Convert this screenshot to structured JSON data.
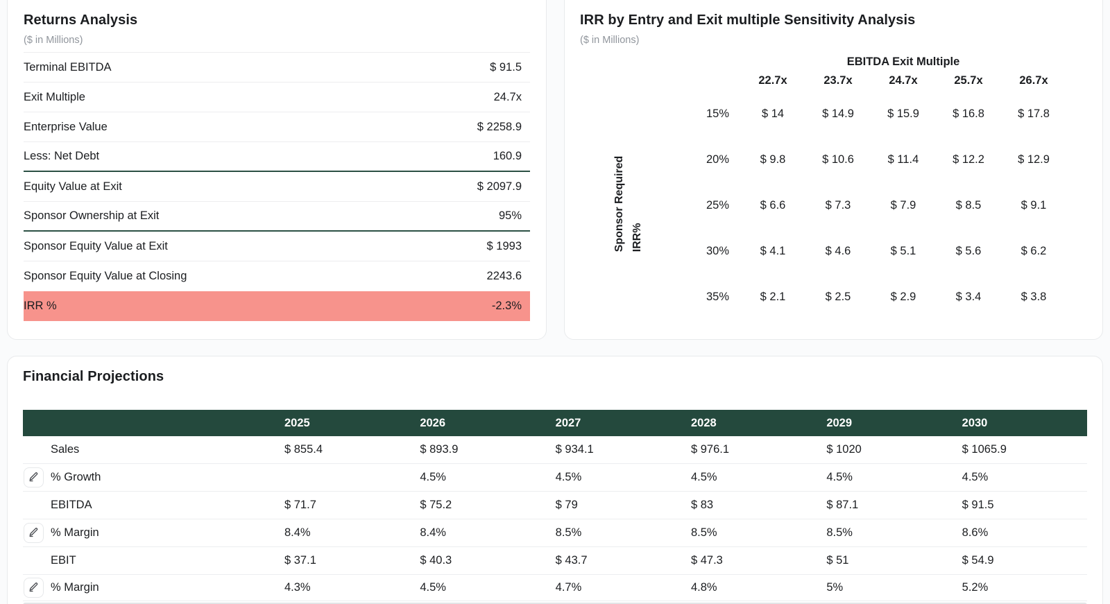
{
  "returns_analysis": {
    "title": "Returns Analysis",
    "subtitle": "($ in Millions)",
    "rows": [
      {
        "label": "Terminal EBITDA",
        "value": "$ 91.5",
        "divider": "normal",
        "highlight": false
      },
      {
        "label": "Exit Multiple",
        "value": "24.7x",
        "divider": "normal",
        "highlight": false
      },
      {
        "label": "Enterprise Value",
        "value": "$ 2258.9",
        "divider": "normal",
        "highlight": false
      },
      {
        "label": "Less: Net Debt",
        "value": "160.9",
        "divider": "strong",
        "highlight": false
      },
      {
        "label": "Equity Value at Exit",
        "value": "$ 2097.9",
        "divider": "normal",
        "highlight": false
      },
      {
        "label": "Sponsor Ownership at Exit",
        "value": "95%",
        "divider": "strong",
        "highlight": false
      },
      {
        "label": "Sponsor Equity Value at Exit",
        "value": "$ 1993",
        "divider": "normal",
        "highlight": false
      },
      {
        "label": "Sponsor Equity Value at Closing",
        "value": "2243.6",
        "divider": "none",
        "highlight": false
      },
      {
        "label": "IRR %",
        "value": "-2.3%",
        "divider": "none",
        "highlight": true
      }
    ]
  },
  "sensitivity": {
    "title": "IRR by Entry and Exit multiple Sensitivity Analysis",
    "subtitle": "($ in Millions)",
    "column_group_label": "EBITDA Exit Multiple",
    "row_group_label_line1": "Sponsor Required",
    "row_group_label_line2": "IRR%",
    "columns": [
      "22.7x",
      "23.7x",
      "24.7x",
      "25.7x",
      "26.7x"
    ],
    "rows": [
      {
        "label": "15%",
        "values": [
          "$ 14",
          "$ 14.9",
          "$ 15.9",
          "$ 16.8",
          "$ 17.8"
        ]
      },
      {
        "label": "20%",
        "values": [
          "$ 9.8",
          "$ 10.6",
          "$ 11.4",
          "$ 12.2",
          "$ 12.9"
        ]
      },
      {
        "label": "25%",
        "values": [
          "$ 6.6",
          "$ 7.3",
          "$ 7.9",
          "$ 8.5",
          "$ 9.1"
        ]
      },
      {
        "label": "30%",
        "values": [
          "$ 4.1",
          "$ 4.6",
          "$ 5.1",
          "$ 5.6",
          "$ 6.2"
        ]
      },
      {
        "label": "35%",
        "values": [
          "$ 2.1",
          "$ 2.5",
          "$ 2.9",
          "$ 3.4",
          "$ 3.8"
        ]
      }
    ]
  },
  "projections": {
    "title": "Financial Projections",
    "years": [
      "2025",
      "2026",
      "2027",
      "2028",
      "2029",
      "2030"
    ],
    "rows": [
      {
        "label": "Sales",
        "editable": false,
        "values": [
          "$ 855.4",
          "$ 893.9",
          "$ 934.1",
          "$ 976.1",
          "$ 1020",
          "$ 1065.9"
        ]
      },
      {
        "label": "% Growth",
        "editable": true,
        "values": [
          "",
          "4.5%",
          "4.5%",
          "4.5%",
          "4.5%",
          "4.5%"
        ]
      },
      {
        "label": "EBITDA",
        "editable": false,
        "values": [
          "$ 71.7",
          "$ 75.2",
          "$ 79",
          "$ 83",
          "$ 87.1",
          "$ 91.5"
        ]
      },
      {
        "label": "% Margin",
        "editable": true,
        "values": [
          "8.4%",
          "8.4%",
          "8.5%",
          "8.5%",
          "8.5%",
          "8.6%"
        ]
      },
      {
        "label": "EBIT",
        "editable": false,
        "values": [
          "$ 37.1",
          "$ 40.3",
          "$ 43.7",
          "$ 47.3",
          "$ 51",
          "$ 54.9"
        ]
      },
      {
        "label": "% Margin",
        "editable": true,
        "values": [
          "4.3%",
          "4.5%",
          "4.7%",
          "4.8%",
          "5%",
          "5.2%"
        ]
      }
    ]
  },
  "colors": {
    "accent_green": "#24493d",
    "sum_rule_green": "#2b5044",
    "highlight_red": "#f7938c"
  }
}
